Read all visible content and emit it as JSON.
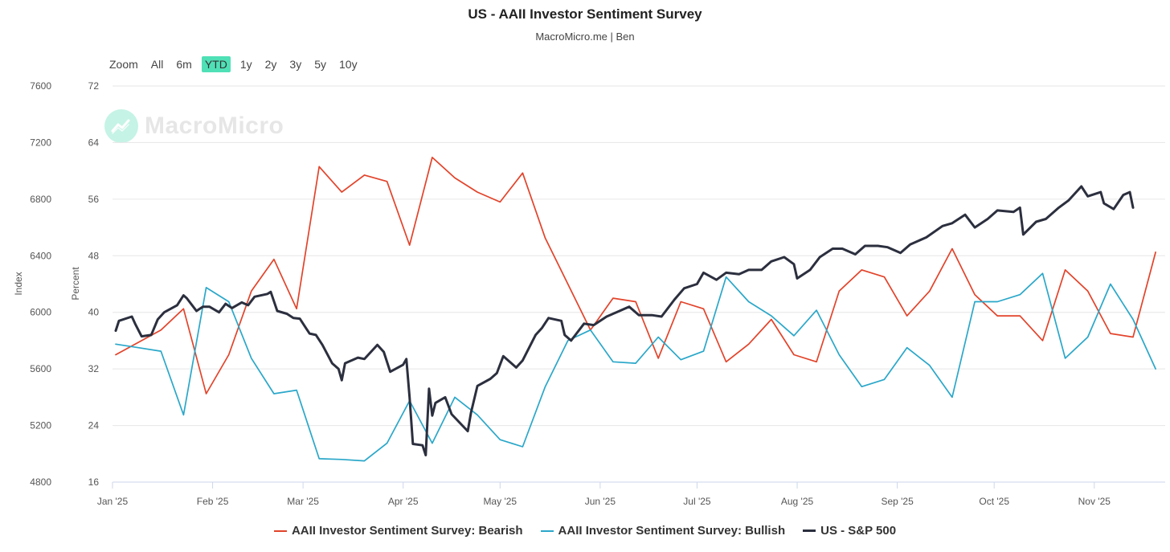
{
  "header": {
    "title": "US - AAII Investor Sentiment Survey",
    "subtitle": "MacroMicro.me | Ben"
  },
  "zoom": {
    "label": "Zoom",
    "options": [
      "All",
      "6m",
      "YTD",
      "1y",
      "2y",
      "3y",
      "5y",
      "10y"
    ],
    "active": "YTD"
  },
  "watermark": {
    "text": "MacroMicro"
  },
  "colors": {
    "bearish": "#e2432a",
    "bullish": "#2aa7c9",
    "sp500": "#2b2f3e",
    "grid": "#e6e6e6",
    "active_zoom": "#4fe0b6"
  },
  "chart_data": {
    "type": "line",
    "title": "US - AAII Investor Sentiment Survey",
    "subtitle": "MacroMicro.me | Ben",
    "x_range": [
      "2025-01-01",
      "2025-11-13"
    ],
    "x_ticks": [
      {
        "date": "2025-01-01",
        "label": "Jan '25"
      },
      {
        "date": "2025-02-01",
        "label": "Feb '25"
      },
      {
        "date": "2025-03-01",
        "label": "Mar '25"
      },
      {
        "date": "2025-04-01",
        "label": "Apr '25"
      },
      {
        "date": "2025-05-01",
        "label": "May '25"
      },
      {
        "date": "2025-06-01",
        "label": "Jun '25"
      },
      {
        "date": "2025-07-01",
        "label": "Jul '25"
      },
      {
        "date": "2025-08-01",
        "label": "Aug '25"
      },
      {
        "date": "2025-09-01",
        "label": "Sep '25"
      },
      {
        "date": "2025-10-01",
        "label": "Oct '25"
      },
      {
        "date": "2025-11-01",
        "label": "Nov '25"
      }
    ],
    "y_left": {
      "title": "Index",
      "range": [
        4800,
        7600
      ],
      "ticks": [
        "7600",
        "7200",
        "6800",
        "6400",
        "6000",
        "5600",
        "5200",
        "4800"
      ]
    },
    "y_right": {
      "title": "Percent",
      "range": [
        16,
        72
      ],
      "ticks": [
        "72",
        "64",
        "56",
        "48",
        "40",
        "32",
        "24",
        "16"
      ]
    },
    "series": [
      {
        "name": "AAII Investor Sentiment Survey: Bearish",
        "axis": "percent",
        "color": "#e2432a",
        "points": [
          [
            "2025-01-02",
            34.0
          ],
          [
            "2025-01-16",
            37.5
          ],
          [
            "2025-01-23",
            40.5
          ],
          [
            "2025-01-30",
            28.5
          ],
          [
            "2025-02-06",
            34.0
          ],
          [
            "2025-02-13",
            43.0
          ],
          [
            "2025-02-20",
            47.5
          ],
          [
            "2025-02-27",
            40.5
          ],
          [
            "2025-03-06",
            60.6
          ],
          [
            "2025-03-13",
            57.0
          ],
          [
            "2025-03-20",
            59.4
          ],
          [
            "2025-03-27",
            58.5
          ],
          [
            "2025-04-03",
            49.5
          ],
          [
            "2025-04-10",
            61.9
          ],
          [
            "2025-04-17",
            59.0
          ],
          [
            "2025-04-24",
            57.0
          ],
          [
            "2025-05-01",
            55.6
          ],
          [
            "2025-05-08",
            59.7
          ],
          [
            "2025-05-15",
            50.5
          ],
          [
            "2025-05-22",
            44.0
          ],
          [
            "2025-05-29",
            37.5
          ],
          [
            "2025-06-05",
            42.0
          ],
          [
            "2025-06-12",
            41.5
          ],
          [
            "2025-06-19",
            33.5
          ],
          [
            "2025-06-26",
            41.5
          ],
          [
            "2025-07-03",
            40.5
          ],
          [
            "2025-07-10",
            33.0
          ],
          [
            "2025-07-17",
            35.5
          ],
          [
            "2025-07-24",
            39.0
          ],
          [
            "2025-07-31",
            34.0
          ],
          [
            "2025-08-07",
            33.0
          ],
          [
            "2025-08-14",
            43.0
          ],
          [
            "2025-08-21",
            46.0
          ],
          [
            "2025-08-28",
            45.0
          ],
          [
            "2025-09-04",
            39.5
          ],
          [
            "2025-09-11",
            43.0
          ],
          [
            "2025-09-18",
            49.0
          ],
          [
            "2025-09-25",
            42.5
          ],
          [
            "2025-10-02",
            39.5
          ],
          [
            "2025-10-09",
            39.5
          ],
          [
            "2025-10-16",
            36.0
          ],
          [
            "2025-10-23",
            46.0
          ],
          [
            "2025-10-30",
            43.0
          ],
          [
            "2025-11-06",
            37.0
          ],
          [
            "2025-11-13",
            36.5
          ],
          [
            "2025-11-20",
            48.5
          ]
        ]
      },
      {
        "name": "AAII Investor Sentiment Survey: Bullish",
        "axis": "percent",
        "color": "#2aa7c9",
        "points": [
          [
            "2025-01-02",
            35.5
          ],
          [
            "2025-01-09",
            35.0
          ],
          [
            "2025-01-16",
            34.5
          ],
          [
            "2025-01-23",
            25.5
          ],
          [
            "2025-01-30",
            43.5
          ],
          [
            "2025-02-06",
            41.5
          ],
          [
            "2025-02-13",
            33.5
          ],
          [
            "2025-02-20",
            28.5
          ],
          [
            "2025-02-27",
            29.0
          ],
          [
            "2025-03-06",
            19.3
          ],
          [
            "2025-03-13",
            19.2
          ],
          [
            "2025-03-20",
            19.0
          ],
          [
            "2025-03-27",
            21.5
          ],
          [
            "2025-04-03",
            27.5
          ],
          [
            "2025-04-10",
            21.5
          ],
          [
            "2025-04-17",
            28.0
          ],
          [
            "2025-04-24",
            25.5
          ],
          [
            "2025-05-01",
            22.0
          ],
          [
            "2025-05-08",
            21.0
          ],
          [
            "2025-05-15",
            29.5
          ],
          [
            "2025-05-22",
            36.0
          ],
          [
            "2025-05-29",
            37.5
          ],
          [
            "2025-06-05",
            33.0
          ],
          [
            "2025-06-12",
            32.8
          ],
          [
            "2025-06-19",
            36.5
          ],
          [
            "2025-06-26",
            33.3
          ],
          [
            "2025-07-03",
            34.5
          ],
          [
            "2025-07-10",
            45.0
          ],
          [
            "2025-07-17",
            41.5
          ],
          [
            "2025-07-24",
            39.5
          ],
          [
            "2025-07-31",
            36.7
          ],
          [
            "2025-08-07",
            40.3
          ],
          [
            "2025-08-14",
            34.0
          ],
          [
            "2025-08-21",
            29.5
          ],
          [
            "2025-08-28",
            30.5
          ],
          [
            "2025-09-04",
            35.0
          ],
          [
            "2025-09-11",
            32.5
          ],
          [
            "2025-09-18",
            28.0
          ],
          [
            "2025-09-25",
            41.5
          ],
          [
            "2025-10-02",
            41.5
          ],
          [
            "2025-10-09",
            42.5
          ],
          [
            "2025-10-16",
            45.5
          ],
          [
            "2025-10-23",
            33.5
          ],
          [
            "2025-10-30",
            36.5
          ],
          [
            "2025-11-06",
            44.0
          ],
          [
            "2025-11-13",
            39.0
          ],
          [
            "2025-11-20",
            32.0
          ]
        ]
      },
      {
        "name": "US - S&P 500",
        "axis": "index",
        "color": "#2b2f3e",
        "points": [
          [
            "2025-01-02",
            5870
          ],
          [
            "2025-01-03",
            5940
          ],
          [
            "2025-01-07",
            5970
          ],
          [
            "2025-01-08",
            5920
          ],
          [
            "2025-01-10",
            5830
          ],
          [
            "2025-01-13",
            5840
          ],
          [
            "2025-01-15",
            5950
          ],
          [
            "2025-01-17",
            6000
          ],
          [
            "2025-01-21",
            6050
          ],
          [
            "2025-01-23",
            6120
          ],
          [
            "2025-01-24",
            6100
          ],
          [
            "2025-01-27",
            6010
          ],
          [
            "2025-01-29",
            6040
          ],
          [
            "2025-01-31",
            6040
          ],
          [
            "2025-02-03",
            6000
          ],
          [
            "2025-02-05",
            6060
          ],
          [
            "2025-02-07",
            6030
          ],
          [
            "2025-02-10",
            6070
          ],
          [
            "2025-02-12",
            6050
          ],
          [
            "2025-02-14",
            6110
          ],
          [
            "2025-02-18",
            6130
          ],
          [
            "2025-02-19",
            6145
          ],
          [
            "2025-02-21",
            6010
          ],
          [
            "2025-02-24",
            5990
          ],
          [
            "2025-02-26",
            5960
          ],
          [
            "2025-02-28",
            5955
          ],
          [
            "2025-03-03",
            5850
          ],
          [
            "2025-03-05",
            5840
          ],
          [
            "2025-03-07",
            5770
          ],
          [
            "2025-03-10",
            5640
          ],
          [
            "2025-03-12",
            5600
          ],
          [
            "2025-03-13",
            5520
          ],
          [
            "2025-03-14",
            5640
          ],
          [
            "2025-03-18",
            5680
          ],
          [
            "2025-03-20",
            5670
          ],
          [
            "2025-03-24",
            5770
          ],
          [
            "2025-03-26",
            5720
          ],
          [
            "2025-03-28",
            5580
          ],
          [
            "2025-04-01",
            5630
          ],
          [
            "2025-04-02",
            5670
          ],
          [
            "2025-04-03",
            5400
          ],
          [
            "2025-04-04",
            5070
          ],
          [
            "2025-04-07",
            5060
          ],
          [
            "2025-04-08",
            4990
          ],
          [
            "2025-04-09",
            5460
          ],
          [
            "2025-04-10",
            5270
          ],
          [
            "2025-04-11",
            5360
          ],
          [
            "2025-04-14",
            5400
          ],
          [
            "2025-04-16",
            5280
          ],
          [
            "2025-04-21",
            5160
          ],
          [
            "2025-04-22",
            5290
          ],
          [
            "2025-04-24",
            5480
          ],
          [
            "2025-04-28",
            5530
          ],
          [
            "2025-04-30",
            5570
          ],
          [
            "2025-05-02",
            5690
          ],
          [
            "2025-05-06",
            5610
          ],
          [
            "2025-05-08",
            5660
          ],
          [
            "2025-05-12",
            5840
          ],
          [
            "2025-05-14",
            5890
          ],
          [
            "2025-05-16",
            5960
          ],
          [
            "2025-05-20",
            5940
          ],
          [
            "2025-05-21",
            5840
          ],
          [
            "2025-05-23",
            5800
          ],
          [
            "2025-05-27",
            5920
          ],
          [
            "2025-05-30",
            5910
          ],
          [
            "2025-06-03",
            5970
          ],
          [
            "2025-06-06",
            6000
          ],
          [
            "2025-06-10",
            6040
          ],
          [
            "2025-06-13",
            5980
          ],
          [
            "2025-06-17",
            5980
          ],
          [
            "2025-06-20",
            5970
          ],
          [
            "2025-06-24",
            6090
          ],
          [
            "2025-06-27",
            6170
          ],
          [
            "2025-07-01",
            6200
          ],
          [
            "2025-07-03",
            6280
          ],
          [
            "2025-07-07",
            6230
          ],
          [
            "2025-07-10",
            6280
          ],
          [
            "2025-07-14",
            6270
          ],
          [
            "2025-07-17",
            6300
          ],
          [
            "2025-07-21",
            6300
          ],
          [
            "2025-07-24",
            6360
          ],
          [
            "2025-07-28",
            6390
          ],
          [
            "2025-07-31",
            6340
          ],
          [
            "2025-08-01",
            6240
          ],
          [
            "2025-08-05",
            6300
          ],
          [
            "2025-08-08",
            6390
          ],
          [
            "2025-08-12",
            6450
          ],
          [
            "2025-08-15",
            6450
          ],
          [
            "2025-08-19",
            6410
          ],
          [
            "2025-08-22",
            6470
          ],
          [
            "2025-08-26",
            6470
          ],
          [
            "2025-08-29",
            6460
          ],
          [
            "2025-09-02",
            6420
          ],
          [
            "2025-09-05",
            6480
          ],
          [
            "2025-09-10",
            6530
          ],
          [
            "2025-09-15",
            6610
          ],
          [
            "2025-09-18",
            6630
          ],
          [
            "2025-09-22",
            6690
          ],
          [
            "2025-09-25",
            6600
          ],
          [
            "2025-09-29",
            6660
          ],
          [
            "2025-10-02",
            6720
          ],
          [
            "2025-10-07",
            6710
          ],
          [
            "2025-10-09",
            6740
          ],
          [
            "2025-10-10",
            6550
          ],
          [
            "2025-10-14",
            6640
          ],
          [
            "2025-10-17",
            6660
          ],
          [
            "2025-10-21",
            6740
          ],
          [
            "2025-10-24",
            6790
          ],
          [
            "2025-10-28",
            6890
          ],
          [
            "2025-10-30",
            6820
          ],
          [
            "2025-11-03",
            6850
          ],
          [
            "2025-11-04",
            6770
          ],
          [
            "2025-11-07",
            6730
          ],
          [
            "2025-11-10",
            6830
          ],
          [
            "2025-11-12",
            6850
          ],
          [
            "2025-11-13",
            6740
          ]
        ]
      }
    ]
  },
  "legend": [
    {
      "label": "AAII Investor Sentiment Survey: Bearish"
    },
    {
      "label": "AAII Investor Sentiment Survey: Bullish"
    },
    {
      "label": "US - S&P 500"
    }
  ]
}
